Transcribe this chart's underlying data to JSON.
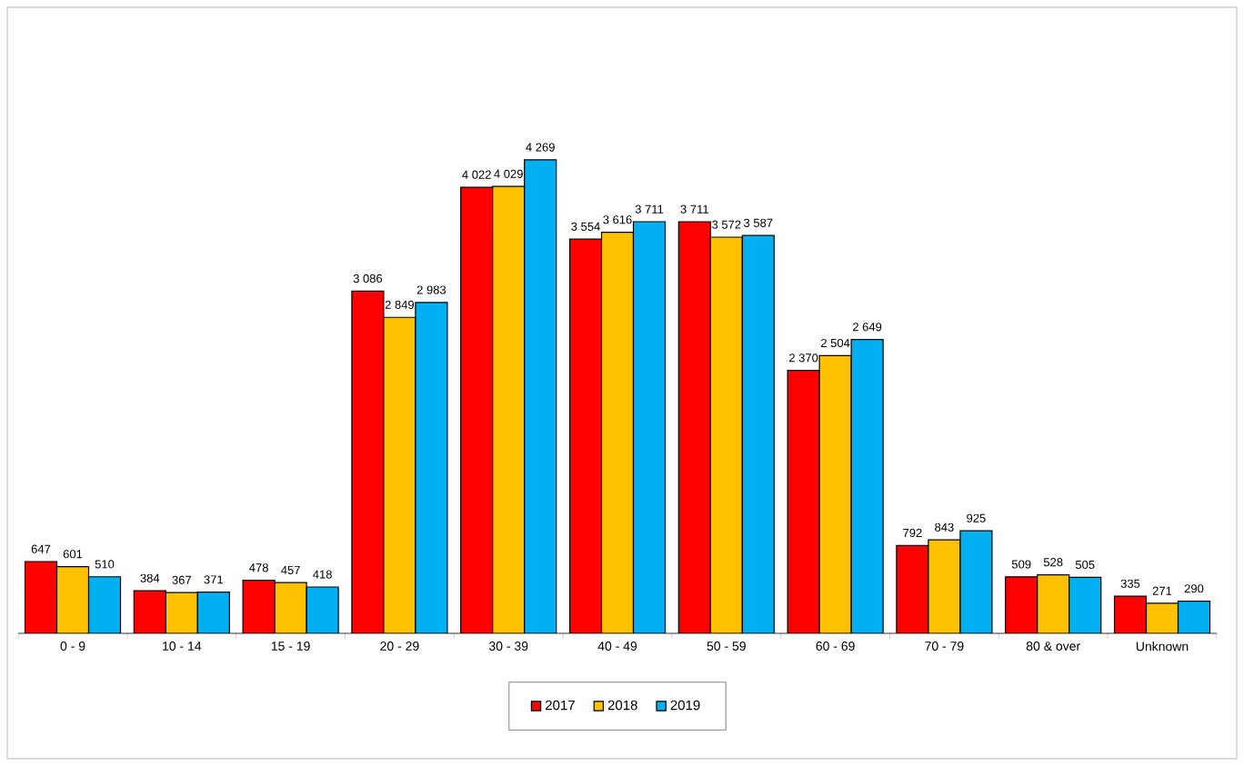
{
  "chart_data": {
    "type": "bar",
    "categories": [
      "0 - 9",
      "10 - 14",
      "15 - 19",
      "20 - 29",
      "30 - 39",
      "40 - 49",
      "50 - 59",
      "60 - 69",
      "70 - 79",
      "80 & over",
      "Unknown"
    ],
    "series": [
      {
        "name": "2017",
        "color": "#ff0000",
        "values": [
          647,
          384,
          478,
          3086,
          4022,
          3554,
          3711,
          2370,
          792,
          509,
          335
        ],
        "value_labels": [
          "647",
          "384",
          "478",
          "3 086",
          "4 022",
          "3 554",
          "3 711",
          "2 370",
          "792",
          "509",
          "335"
        ]
      },
      {
        "name": "2018",
        "color": "#ffc000",
        "values": [
          601,
          367,
          457,
          2849,
          4029,
          3616,
          3572,
          2504,
          843,
          528,
          271
        ],
        "value_labels": [
          "601",
          "367",
          "457",
          "2 849",
          "4 029",
          "3 616",
          "3 572",
          "2 504",
          "843",
          "528",
          "271"
        ]
      },
      {
        "name": "2019",
        "color": "#00b0f0",
        "values": [
          510,
          371,
          418,
          2983,
          4269,
          3711,
          3587,
          2649,
          925,
          505,
          290
        ],
        "value_labels": [
          "510",
          "371",
          "418",
          "2 983",
          "4 269",
          "3 711",
          "3 587",
          "2 649",
          "925",
          "505",
          "290"
        ]
      }
    ],
    "legend": "bottom"
  }
}
